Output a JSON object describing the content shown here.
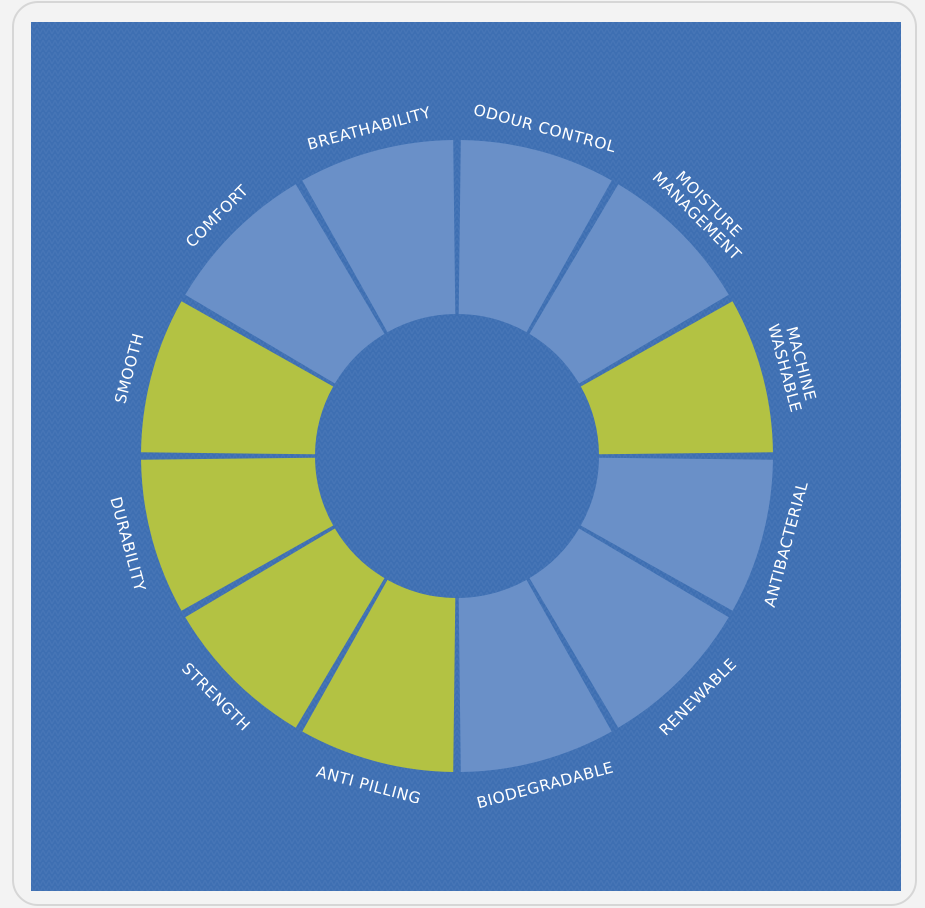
{
  "wheel": {
    "segments": [
      {
        "label": "ODOUR CONTROL",
        "highlighted": false
      },
      {
        "label": "MOISTURE\nMANAGEMENT",
        "highlighted": false
      },
      {
        "label": "MACHINE\nWASHABLE",
        "highlighted": true
      },
      {
        "label": "ANTIBACTERIAL",
        "highlighted": false
      },
      {
        "label": "RENEWABLE",
        "highlighted": false
      },
      {
        "label": "BIODEGRADABLE",
        "highlighted": false
      },
      {
        "label": "ANTI PILLING",
        "highlighted": true
      },
      {
        "label": "STRENGTH",
        "highlighted": true
      },
      {
        "label": "DURABILITY",
        "highlighted": true
      },
      {
        "label": "SMOOTH",
        "highlighted": true
      },
      {
        "label": "COMFORT",
        "highlighted": false
      },
      {
        "label": "BREATHABILITY",
        "highlighted": false
      }
    ],
    "colors": {
      "background": "#3e6fb2",
      "segment": "#6a90c8",
      "highlight": "#b3c243",
      "label": "#ffffff"
    }
  }
}
